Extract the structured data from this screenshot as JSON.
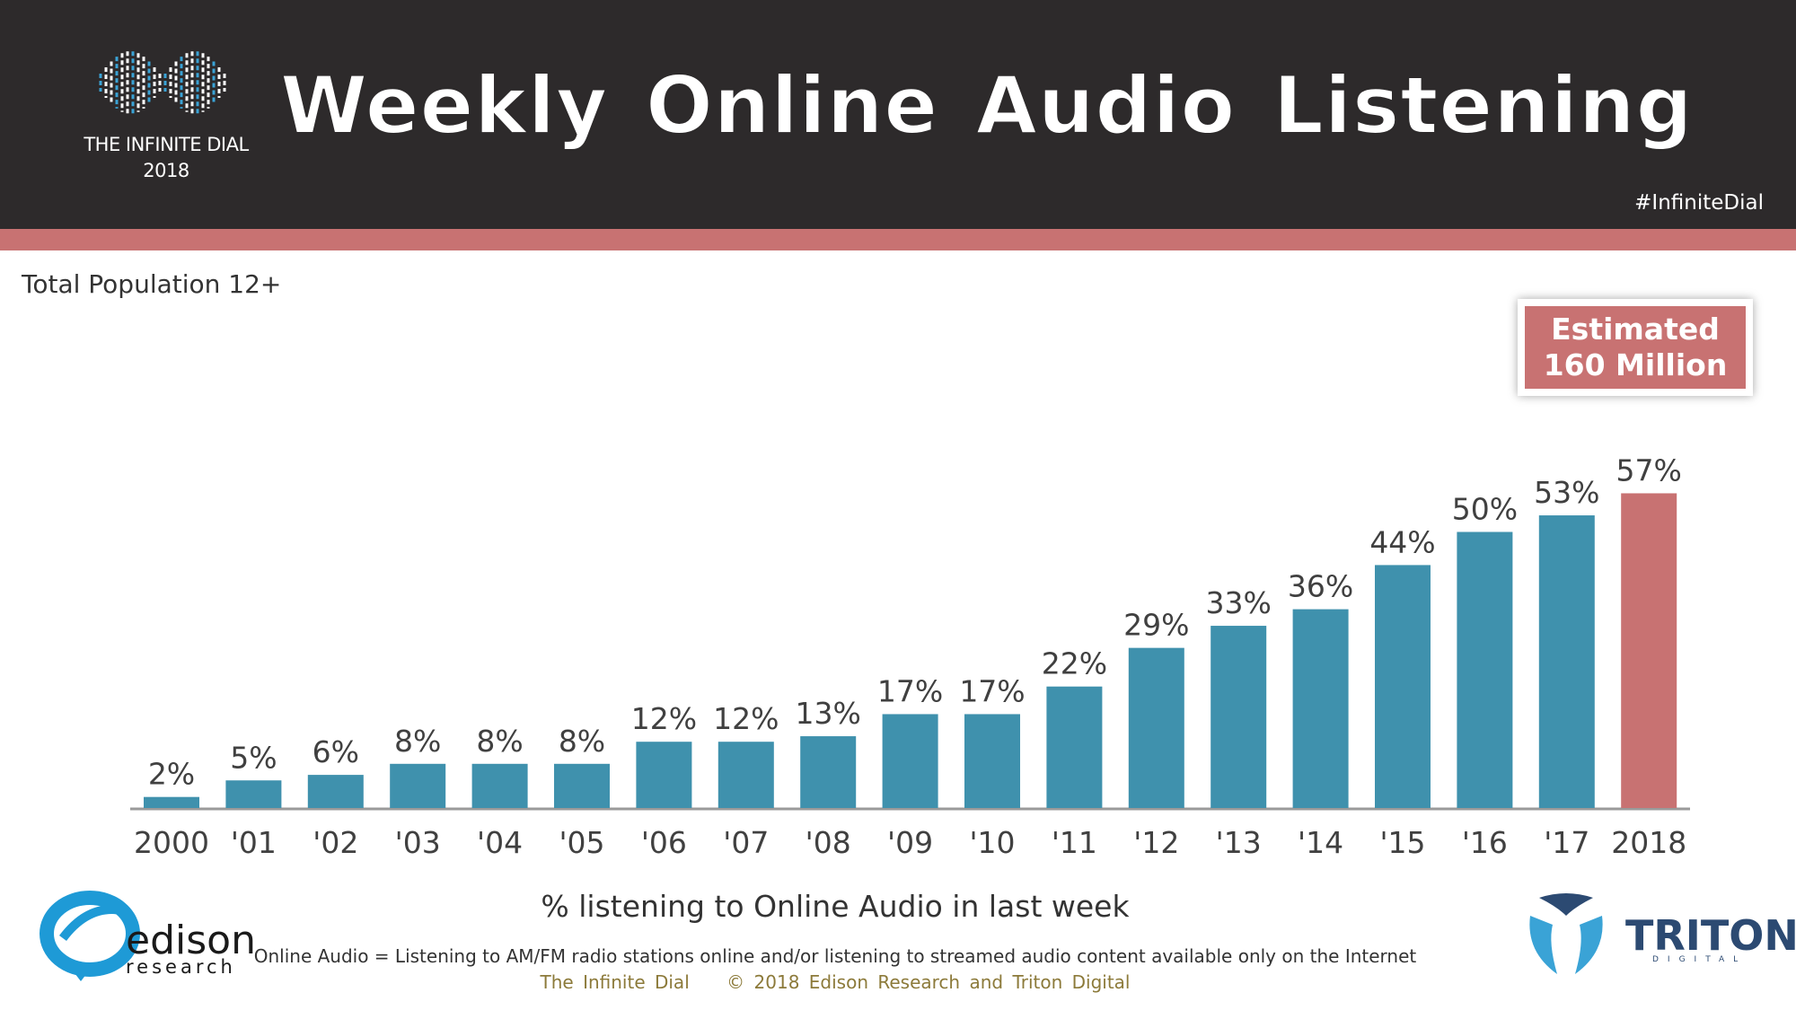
{
  "header": {
    "title": "Weekly Online Audio Listening",
    "logo_line1": "THE INFINITE DIAL",
    "logo_line2": "2018",
    "hashtag": "#InfiniteDial"
  },
  "subtitle": "Total Population 12+",
  "callout": {
    "line1": "Estimated",
    "line2": "160 Million"
  },
  "footer": {
    "definition": "Online Audio = Listening to AM/FM radio stations online and/or listening to streamed audio content available only on the Internet",
    "credit": "The Infinite Dial    © 2018 Edison Research and Triton Digital",
    "edison_word": "edison",
    "edison_sub": "research",
    "triton_word": "TRITON",
    "triton_sub": "DIGITAL"
  },
  "colors": {
    "bar": "#3f91ad",
    "highlight": "#c87272",
    "header_bg": "#2d2a2b",
    "stripe": "#c87272",
    "text": "#333333"
  },
  "chart_data": {
    "type": "bar",
    "title": "Weekly Online Audio Listening",
    "subtitle": "Total Population 12+",
    "xlabel": "% listening to Online Audio in last week",
    "ylabel": "",
    "categories": [
      "2000",
      "'01",
      "'02",
      "'03",
      "'04",
      "'05",
      "'06",
      "'07",
      "'08",
      "'09",
      "'10",
      "'11",
      "'12",
      "'13",
      "'14",
      "'15",
      "'16",
      "'17",
      "2018"
    ],
    "values": [
      2,
      5,
      6,
      8,
      8,
      8,
      12,
      12,
      13,
      17,
      17,
      22,
      29,
      33,
      36,
      44,
      50,
      53,
      57
    ],
    "data_labels": [
      "2%",
      "5%",
      "6%",
      "8%",
      "8%",
      "8%",
      "12%",
      "12%",
      "13%",
      "17%",
      "17%",
      "22%",
      "29%",
      "33%",
      "36%",
      "44%",
      "50%",
      "53%",
      "57%"
    ],
    "highlight_index": 18,
    "ylim": [
      0,
      60
    ],
    "grid": false,
    "legend": "none"
  }
}
